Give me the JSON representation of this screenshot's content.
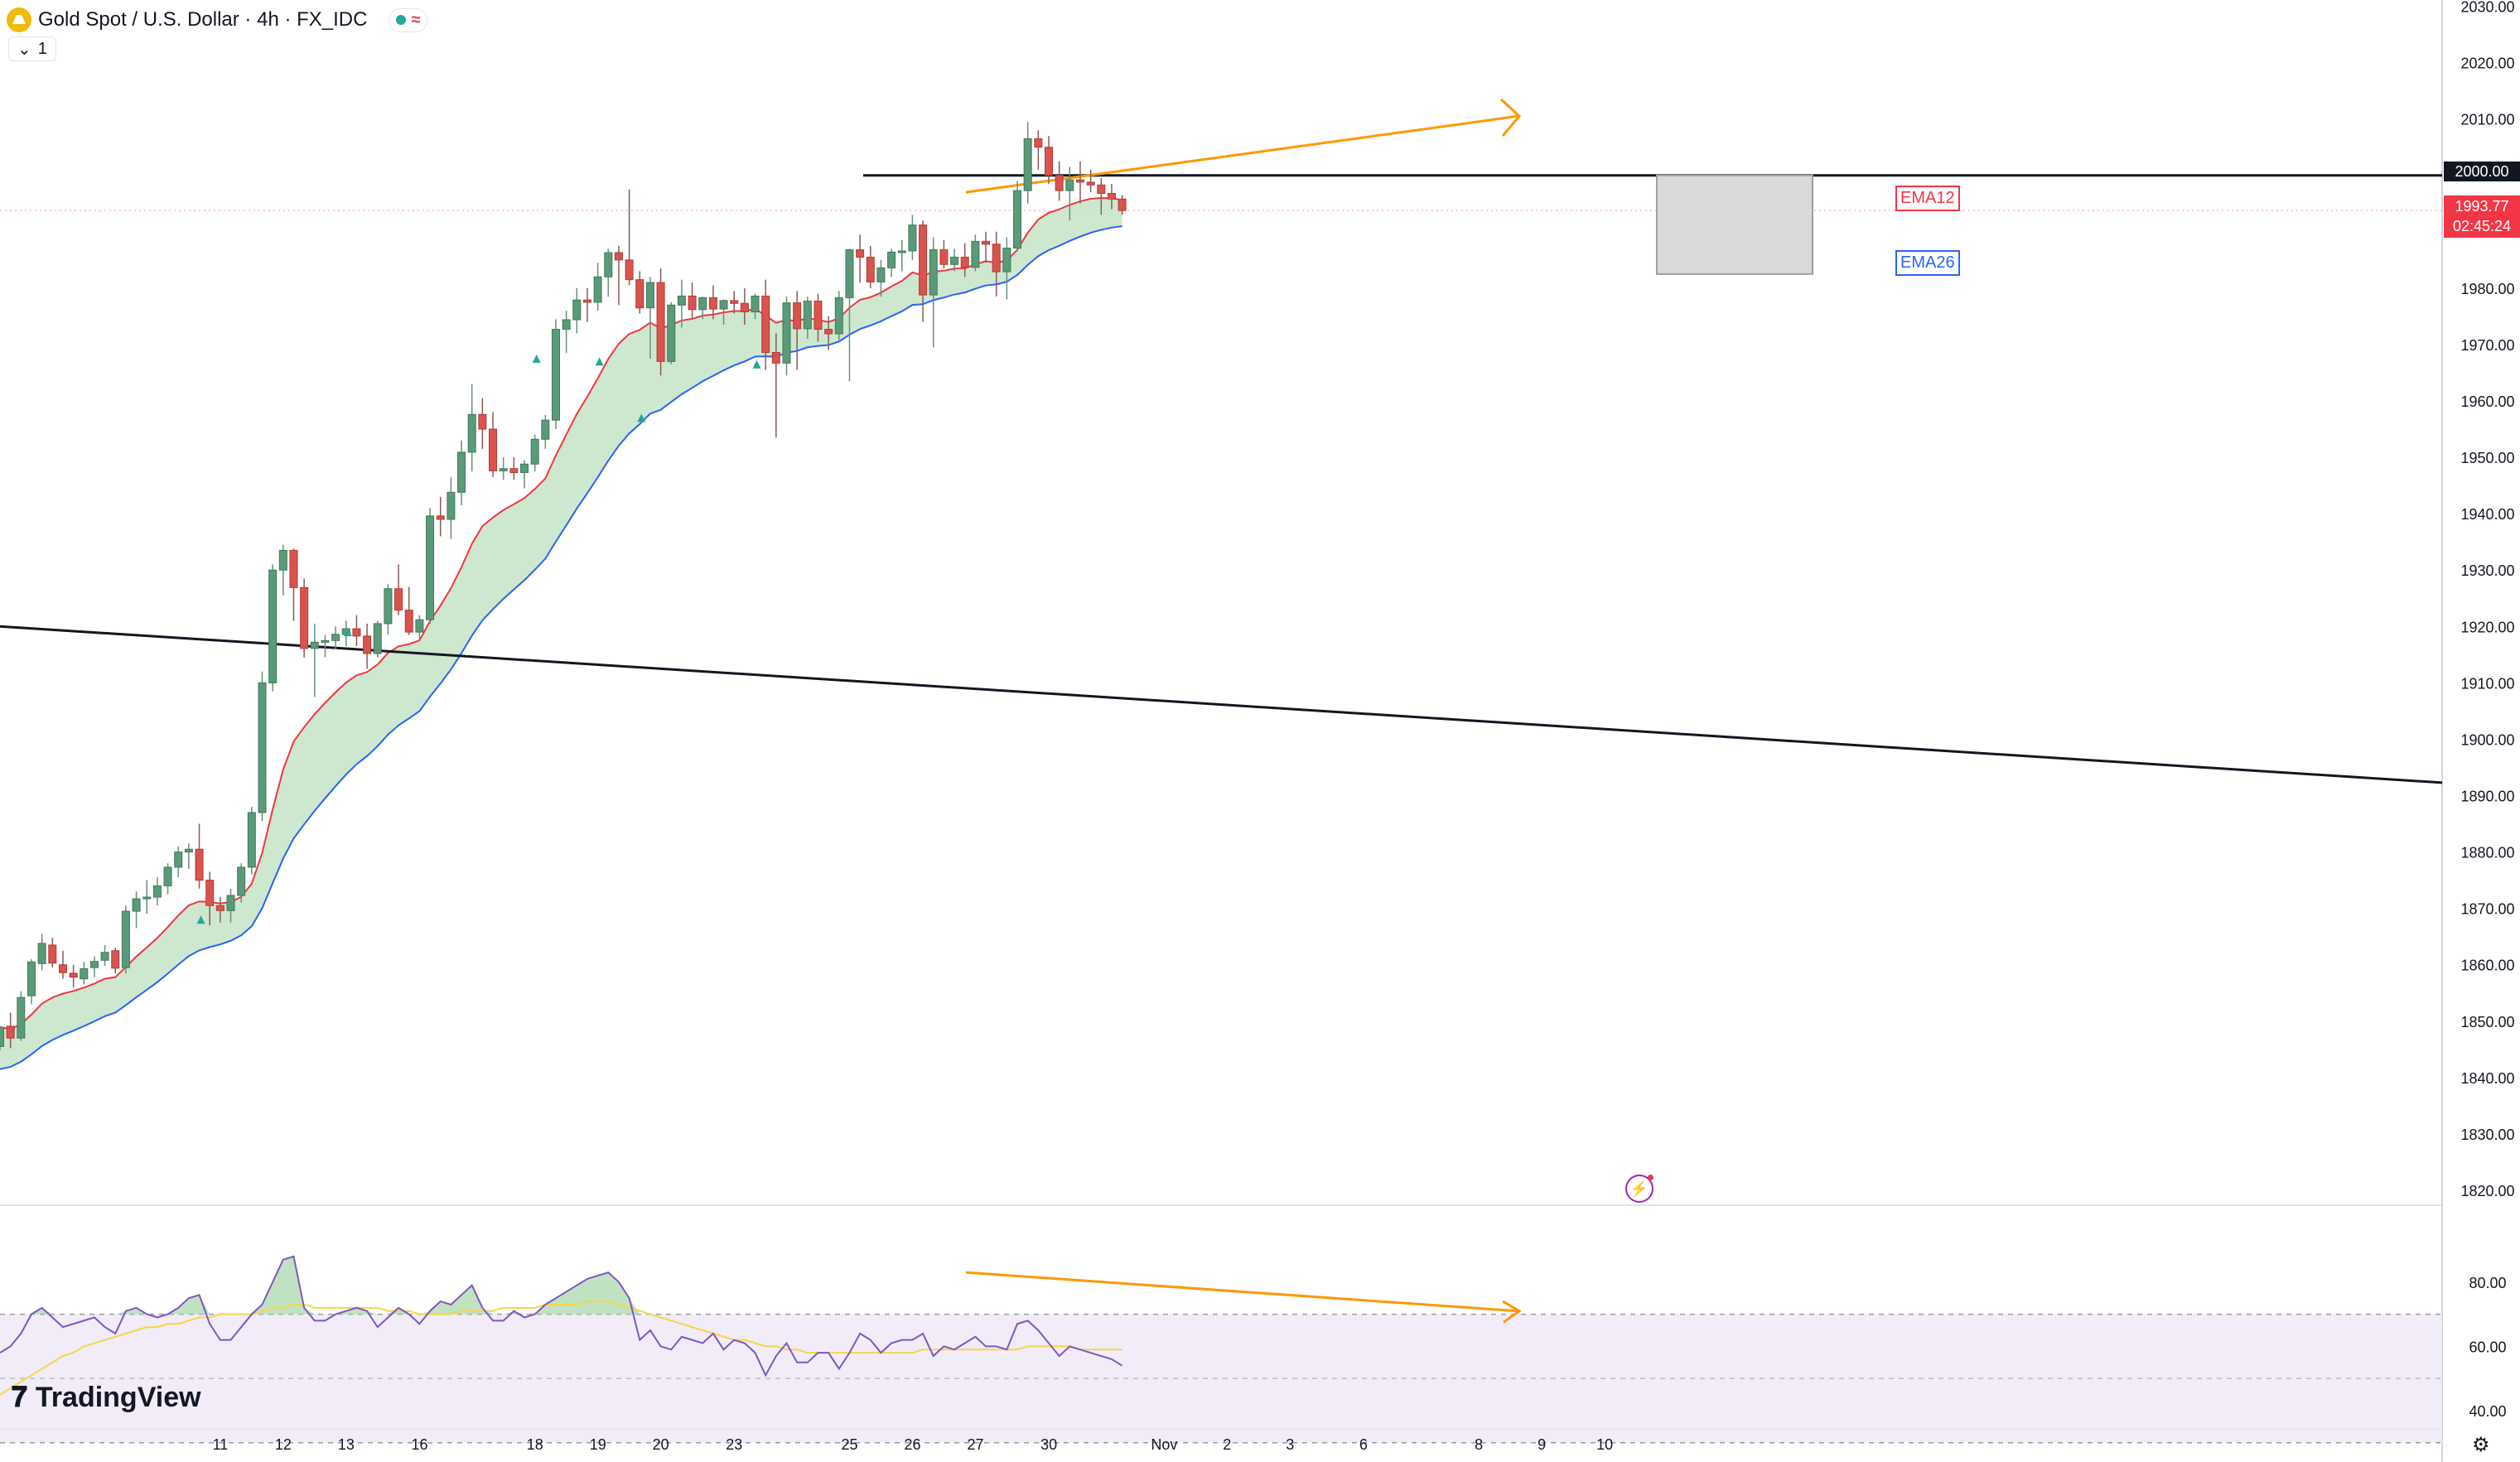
{
  "legend": {
    "symbol": "Gold Spot / U.S. Dollar · 4h · FX_IDC",
    "collapse_label": "1"
  },
  "brand": {
    "name": "TradingView"
  },
  "ema_labels": {
    "ema12": "EMA12",
    "ema26": "EMA26"
  },
  "price_tags": {
    "level": "2000.00",
    "last_price": "1993.77",
    "countdown": "02:45:24"
  },
  "icons": {
    "settings": "gear-icon",
    "alert": "lightning-icon"
  },
  "colors": {
    "up": "#26a69a",
    "down": "#f23645",
    "ema12": "#f23645",
    "ema26": "#2962ff",
    "cloud": "#c8e6c9",
    "rsi": "#7e57c2",
    "rsi_ma": "#f7d54a",
    "annotation": "#ff9800"
  },
  "chart_data": {
    "type": "candlestick",
    "y_axis": {
      "ticks": [
        "2030.00",
        "2020.00",
        "2010.00",
        "2000.00",
        "1990.00",
        "1980.00",
        "1970.00",
        "1960.00",
        "1950.00",
        "1940.00",
        "1930.00",
        "1920.00",
        "1910.00",
        "1900.00",
        "1890.00",
        "1880.00",
        "1870.00",
        "1860.00",
        "1850.00",
        "1840.00",
        "1830.00",
        "1820.00"
      ],
      "range": [
        1817,
        2031
      ]
    },
    "x_axis": {
      "ticks": [
        {
          "label": "11",
          "i": 6
        },
        {
          "label": "12",
          "i": 12
        },
        {
          "label": "13",
          "i": 18
        },
        {
          "label": "16",
          "i": 25
        },
        {
          "label": "18",
          "i": 36
        },
        {
          "label": "19",
          "i": 42
        },
        {
          "label": "20",
          "i": 48
        },
        {
          "label": "23",
          "i": 55
        },
        {
          "label": "25",
          "i": 66
        },
        {
          "label": "26",
          "i": 72
        },
        {
          "label": "27",
          "i": 78
        },
        {
          "label": "30",
          "i": 85
        },
        {
          "label": "Nov",
          "i": 96
        },
        {
          "label": "2",
          "i": 102
        },
        {
          "label": "3",
          "i": 108
        },
        {
          "label": "6",
          "i": 115
        },
        {
          "label": "8",
          "i": 126
        },
        {
          "label": "9",
          "i": 132
        },
        {
          "label": "10",
          "i": 138
        }
      ]
    },
    "candles": [
      [
        1845.5,
        1849.2,
        1844.8,
        1848.9
      ],
      [
        1849.1,
        1851.5,
        1845.2,
        1847.0
      ],
      [
        1847.0,
        1855.3,
        1846.5,
        1854.2
      ],
      [
        1854.5,
        1861.0,
        1853.0,
        1860.5
      ],
      [
        1860.2,
        1865.5,
        1859.0,
        1863.8
      ],
      [
        1863.5,
        1864.8,
        1859.5,
        1860.3
      ],
      [
        1860.0,
        1862.5,
        1857.5,
        1858.6
      ],
      [
        1858.5,
        1860.0,
        1856.0,
        1857.8
      ],
      [
        1857.5,
        1860.5,
        1856.5,
        1859.3
      ],
      [
        1859.5,
        1861.5,
        1857.8,
        1860.6
      ],
      [
        1860.8,
        1863.5,
        1859.8,
        1862.2
      ],
      [
        1862.5,
        1863.0,
        1858.5,
        1859.4
      ],
      [
        1859.5,
        1870.5,
        1858.5,
        1869.5
      ],
      [
        1869.5,
        1873.0,
        1866.5,
        1871.7
      ],
      [
        1871.7,
        1875.0,
        1869.0,
        1872.0
      ],
      [
        1872.0,
        1875.5,
        1870.5,
        1874.0
      ],
      [
        1874.0,
        1878.0,
        1872.5,
        1877.3
      ],
      [
        1877.3,
        1881.0,
        1875.5,
        1880.0
      ],
      [
        1880.0,
        1881.5,
        1877.0,
        1880.5
      ],
      [
        1880.5,
        1885.0,
        1873.5,
        1875.0
      ],
      [
        1875.0,
        1876.5,
        1867.0,
        1870.5
      ],
      [
        1870.5,
        1872.0,
        1867.5,
        1869.6
      ],
      [
        1869.6,
        1873.5,
        1867.5,
        1872.3
      ],
      [
        1872.3,
        1878.0,
        1871.0,
        1877.3
      ],
      [
        1877.3,
        1888.0,
        1876.0,
        1887.0
      ],
      [
        1887.0,
        1912.0,
        1885.5,
        1910.0
      ],
      [
        1910.0,
        1931.0,
        1908.5,
        1930.0
      ],
      [
        1930.0,
        1934.5,
        1925.5,
        1933.5
      ],
      [
        1933.5,
        1933.8,
        1921.0,
        1926.9
      ],
      [
        1926.9,
        1928.5,
        1914.5,
        1916.1
      ],
      [
        1916.1,
        1920.5,
        1907.5,
        1917.2
      ],
      [
        1917.2,
        1918.5,
        1914.5,
        1917.5
      ],
      [
        1917.5,
        1920.0,
        1916.0,
        1918.6
      ],
      [
        1918.6,
        1921.0,
        1916.5,
        1919.6
      ],
      [
        1919.6,
        1922.0,
        1916.5,
        1918.3
      ],
      [
        1918.3,
        1920.5,
        1912.5,
        1915.2
      ],
      [
        1915.2,
        1921.0,
        1914.5,
        1920.5
      ],
      [
        1920.5,
        1927.5,
        1918.5,
        1926.7
      ],
      [
        1926.7,
        1931.0,
        1922.0,
        1922.9
      ],
      [
        1922.9,
        1927.0,
        1918.5,
        1919.0
      ],
      [
        1919.0,
        1922.0,
        1917.5,
        1921.2
      ],
      [
        1921.2,
        1941.0,
        1920.5,
        1939.6
      ],
      [
        1939.6,
        1943.0,
        1936.0,
        1939.0
      ],
      [
        1939.0,
        1946.5,
        1935.5,
        1943.8
      ],
      [
        1943.8,
        1953.0,
        1941.5,
        1950.9
      ],
      [
        1950.9,
        1963.0,
        1947.5,
        1957.6
      ],
      [
        1957.6,
        1960.5,
        1951.5,
        1955.0
      ],
      [
        1955.0,
        1958.0,
        1946.5,
        1947.6
      ],
      [
        1947.6,
        1950.0,
        1946.0,
        1948.0
      ],
      [
        1948.0,
        1950.0,
        1946.0,
        1947.3
      ],
      [
        1947.3,
        1949.5,
        1944.5,
        1948.8
      ],
      [
        1948.8,
        1954.0,
        1947.5,
        1953.2
      ],
      [
        1953.2,
        1957.5,
        1951.5,
        1956.6
      ],
      [
        1956.6,
        1974.5,
        1955.0,
        1972.7
      ],
      [
        1972.7,
        1976.0,
        1968.5,
        1974.4
      ],
      [
        1974.4,
        1980.0,
        1972.0,
        1977.9
      ],
      [
        1977.9,
        1980.0,
        1974.0,
        1977.5
      ],
      [
        1977.5,
        1984.5,
        1976.0,
        1982.0
      ],
      [
        1982.0,
        1987.0,
        1978.5,
        1986.3
      ],
      [
        1986.3,
        1987.5,
        1977.0,
        1985.0
      ],
      [
        1985.0,
        1997.5,
        1980.5,
        1981.5
      ],
      [
        1981.5,
        1983.0,
        1975.5,
        1976.5
      ],
      [
        1976.5,
        1982.0,
        1967.5,
        1981.0
      ],
      [
        1981.0,
        1983.5,
        1964.5,
        1967.0
      ],
      [
        1967.0,
        1977.5,
        1966.5,
        1977.0
      ],
      [
        1977.0,
        1981.5,
        1973.0,
        1978.6
      ],
      [
        1978.6,
        1981.0,
        1974.5,
        1976.2
      ],
      [
        1976.2,
        1978.5,
        1974.5,
        1978.3
      ],
      [
        1978.3,
        1980.5,
        1974.5,
        1976.3
      ],
      [
        1976.3,
        1978.0,
        1973.5,
        1977.8
      ],
      [
        1977.8,
        1979.5,
        1975.5,
        1977.3
      ],
      [
        1977.3,
        1980.0,
        1973.5,
        1975.8
      ],
      [
        1975.8,
        1979.0,
        1974.5,
        1978.6
      ],
      [
        1978.6,
        1981.5,
        1965.5,
        1968.6
      ],
      [
        1968.6,
        1972.0,
        1953.5,
        1966.7
      ],
      [
        1966.7,
        1978.5,
        1964.5,
        1977.4
      ],
      [
        1977.4,
        1979.5,
        1965.5,
        1972.8
      ],
      [
        1972.8,
        1978.5,
        1971.0,
        1977.7
      ],
      [
        1977.7,
        1979.0,
        1970.5,
        1972.7
      ],
      [
        1972.7,
        1975.0,
        1969.0,
        1971.9
      ],
      [
        1971.9,
        1979.5,
        1970.5,
        1978.3
      ],
      [
        1978.3,
        1987.0,
        1963.5,
        1986.8
      ],
      [
        1986.8,
        1989.5,
        1981.0,
        1985.5
      ],
      [
        1985.5,
        1987.5,
        1980.0,
        1981.1
      ],
      [
        1981.1,
        1985.0,
        1978.5,
        1983.6
      ],
      [
        1983.6,
        1987.0,
        1982.0,
        1986.4
      ],
      [
        1986.4,
        1988.5,
        1983.0,
        1986.6
      ],
      [
        1986.6,
        1993.0,
        1985.0,
        1991.2
      ],
      [
        1991.2,
        1992.0,
        1974.0,
        1978.8
      ],
      [
        1978.8,
        1989.0,
        1969.5,
        1986.8
      ],
      [
        1986.8,
        1988.5,
        1983.5,
        1984.2
      ],
      [
        1984.2,
        1987.0,
        1983.0,
        1985.5
      ],
      [
        1985.5,
        1988.0,
        1982.0,
        1983.7
      ],
      [
        1983.7,
        1989.5,
        1983.0,
        1988.3
      ],
      [
        1988.3,
        1990.0,
        1984.5,
        1987.8
      ],
      [
        1987.8,
        1990.0,
        1978.5,
        1982.9
      ],
      [
        1982.9,
        1989.0,
        1978.0,
        1987.1
      ],
      [
        1987.1,
        1999.0,
        1986.5,
        1997.3
      ],
      [
        1997.3,
        2009.5,
        1995.0,
        2006.5
      ],
      [
        2006.5,
        2008.0,
        2001.0,
        2005.0
      ],
      [
        2005.0,
        2007.0,
        1998.5,
        2000.0
      ],
      [
        2000.0,
        2002.5,
        1995.5,
        1997.3
      ],
      [
        1997.3,
        2001.5,
        1992.0,
        1999.2
      ],
      [
        1999.2,
        2002.5,
        1995.0,
        1998.8
      ],
      [
        1998.8,
        2001.0,
        1997.0,
        1998.3
      ],
      [
        1998.3,
        1999.5,
        1993.0,
        1996.8
      ],
      [
        1996.8,
        1998.5,
        1994.0,
        1995.8
      ],
      [
        1995.8,
        1996.5,
        1993.0,
        1993.77
      ]
    ],
    "ema12_endpoints": [
      1834.5,
      1996.0
    ],
    "ema26_endpoints": [
      1830.5,
      1988.0
    ],
    "horizontal_level": 2000.0,
    "trendline": {
      "from": [
        0,
        1920.0
      ],
      "to": [
        150,
        1892.0
      ]
    },
    "rsi": {
      "ticks": [
        "80.00",
        "60.00",
        "40.00"
      ],
      "levels": {
        "upper": 70,
        "lower": 30
      },
      "values": [
        58,
        60,
        64,
        70,
        72,
        69,
        66,
        67,
        68,
        69,
        66,
        64,
        71,
        72,
        70,
        69,
        70,
        72,
        75,
        76,
        67,
        62,
        62,
        66,
        70,
        73,
        80,
        87,
        88,
        72,
        68,
        68,
        70,
        71,
        72,
        71,
        66,
        69,
        72,
        70,
        67,
        71,
        74,
        73,
        76,
        79,
        72,
        68,
        68,
        71,
        69,
        70,
        73,
        75,
        77,
        79,
        81,
        82,
        83,
        80,
        75,
        62,
        65,
        60,
        59,
        63,
        62,
        61,
        64,
        59,
        62,
        61,
        58,
        51,
        57,
        61,
        55,
        55,
        58,
        58,
        53,
        58,
        64,
        62,
        58,
        61,
        62,
        62,
        64,
        57,
        60,
        59,
        61,
        63,
        60,
        60,
        59,
        67,
        68,
        65,
        61,
        57,
        60,
        59,
        58,
        57,
        56,
        54
      ],
      "ma": [
        45,
        47,
        49,
        51,
        53,
        55,
        57,
        58,
        60,
        61,
        62,
        63,
        64,
        65,
        66,
        66,
        67,
        67,
        68,
        69,
        69,
        70,
        70,
        70,
        70,
        71,
        72,
        72,
        73,
        73,
        72,
        72,
        72,
        72,
        72,
        72,
        72,
        71,
        71,
        71,
        70,
        70,
        70,
        70,
        71,
        71,
        71,
        71,
        72,
        72,
        72,
        72,
        73,
        73,
        73,
        73,
        74,
        74,
        74,
        73,
        72,
        71,
        70,
        69,
        68,
        67,
        66,
        65,
        64,
        63,
        62,
        62,
        61,
        60,
        60,
        59,
        59,
        58,
        58,
        58,
        58,
        58,
        58,
        58,
        58,
        58,
        58,
        58,
        59,
        59,
        59,
        59,
        59,
        59,
        59,
        59,
        59,
        59,
        60,
        60,
        60,
        60,
        60,
        59,
        59,
        59,
        59,
        59
      ]
    }
  }
}
